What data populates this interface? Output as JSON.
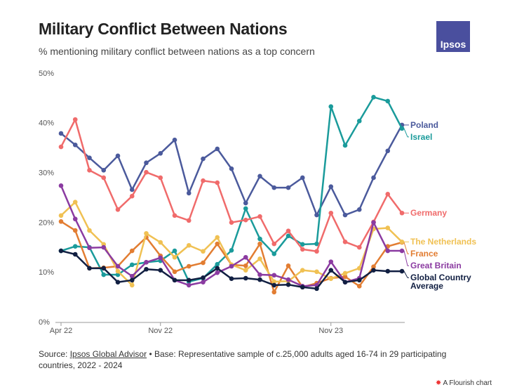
{
  "chart_data": {
    "type": "line",
    "title": "Military Conflict Between Nations",
    "subtitle": "% mentioning military conflict between nations as a top concern",
    "categories": [
      "Apr 22",
      null,
      null,
      null,
      null,
      null,
      null,
      "Nov 22",
      null,
      null,
      null,
      null,
      null,
      null,
      null,
      null,
      null,
      null,
      null,
      "Nov 23",
      null,
      null,
      null,
      null,
      null
    ],
    "ylim": [
      0,
      50
    ],
    "yticks": [
      {
        "value": 0,
        "label": "0%"
      },
      {
        "value": 10,
        "label": "10%"
      },
      {
        "value": 20,
        "label": "20%"
      },
      {
        "value": 30,
        "label": "30%"
      },
      {
        "value": 40,
        "label": "40%"
      },
      {
        "value": 50,
        "label": "50%"
      }
    ],
    "grid": false,
    "series": [
      {
        "name": "Poland",
        "color": "#4b5a9c",
        "values": [
          38.0,
          35.7,
          33.1,
          30.6,
          33.5,
          26.7,
          32.1,
          34.0,
          36.7,
          26.0,
          32.9,
          34.9,
          30.9,
          24.0,
          29.4,
          27.1,
          27.1,
          29.1,
          21.6,
          27.3,
          21.6,
          22.7,
          29.1,
          34.5,
          39.7
        ]
      },
      {
        "name": "Israel",
        "color": "#1a9b9b",
        "values": [
          14.4,
          15.3,
          15.1,
          9.6,
          9.6,
          11.6,
          12.1,
          12.4,
          14.4,
          8.2,
          8.9,
          11.7,
          14.5,
          22.9,
          16.8,
          13.8,
          17.4,
          15.7,
          15.8,
          43.4,
          35.6,
          40.5,
          45.3,
          44.5,
          39.0
        ]
      },
      {
        "name": "Germany",
        "color": "#f06b6b",
        "values": [
          35.3,
          40.8,
          30.6,
          29.1,
          22.7,
          25.4,
          30.2,
          29.1,
          21.5,
          20.5,
          28.5,
          28.1,
          20.1,
          20.6,
          21.3,
          15.8,
          18.4,
          14.7,
          14.3,
          22.0,
          16.2,
          15.1,
          20.2,
          25.8,
          22.0
        ]
      },
      {
        "name": "France",
        "color": "#e27d32",
        "values": [
          20.3,
          18.5,
          10.9,
          11.0,
          11.3,
          14.4,
          17.1,
          13.4,
          10.2,
          11.3,
          12.0,
          15.8,
          11.6,
          11.4,
          15.8,
          6.1,
          11.4,
          7.1,
          7.9,
          8.9,
          9.2,
          7.3,
          11.2,
          15.3,
          16.1
        ]
      },
      {
        "name": "The Netherlands",
        "color": "#f0c153",
        "values": [
          21.5,
          24.2,
          18.5,
          15.7,
          10.3,
          7.5,
          17.9,
          16.1,
          13.1,
          15.5,
          14.3,
          17.1,
          11.6,
          10.5,
          12.8,
          8.2,
          8.3,
          10.5,
          10.2,
          8.8,
          9.9,
          10.9,
          18.8,
          19.0,
          16.2
        ]
      },
      {
        "name": "Great Britain",
        "color": "#8b3ba1",
        "values": [
          27.5,
          20.8,
          15.0,
          15.1,
          11.3,
          9.3,
          12.1,
          13.0,
          8.5,
          7.5,
          8.1,
          10.0,
          11.3,
          13.1,
          9.6,
          9.5,
          8.6,
          7.3,
          7.5,
          12.2,
          8.1,
          8.9,
          20.1,
          14.4,
          14.4
        ]
      },
      {
        "name": "Global Country Average",
        "color": "#111f42",
        "values": [
          14.4,
          13.7,
          10.9,
          10.9,
          8.1,
          8.5,
          10.7,
          10.5,
          8.5,
          8.5,
          9.0,
          10.9,
          8.8,
          8.9,
          8.6,
          7.5,
          7.6,
          7.1,
          6.8,
          10.5,
          8.1,
          8.5,
          10.5,
          10.3,
          10.3
        ]
      }
    ],
    "logo": "Ipsos",
    "source_label": "Source:",
    "source_link": "Ipsos Global Advisor",
    "source_rest": "• Base: Representative sample of c.25,000 adults aged 16-74 in 29 participating countries, 2022 - 2024",
    "credit": "A Flourish chart"
  }
}
